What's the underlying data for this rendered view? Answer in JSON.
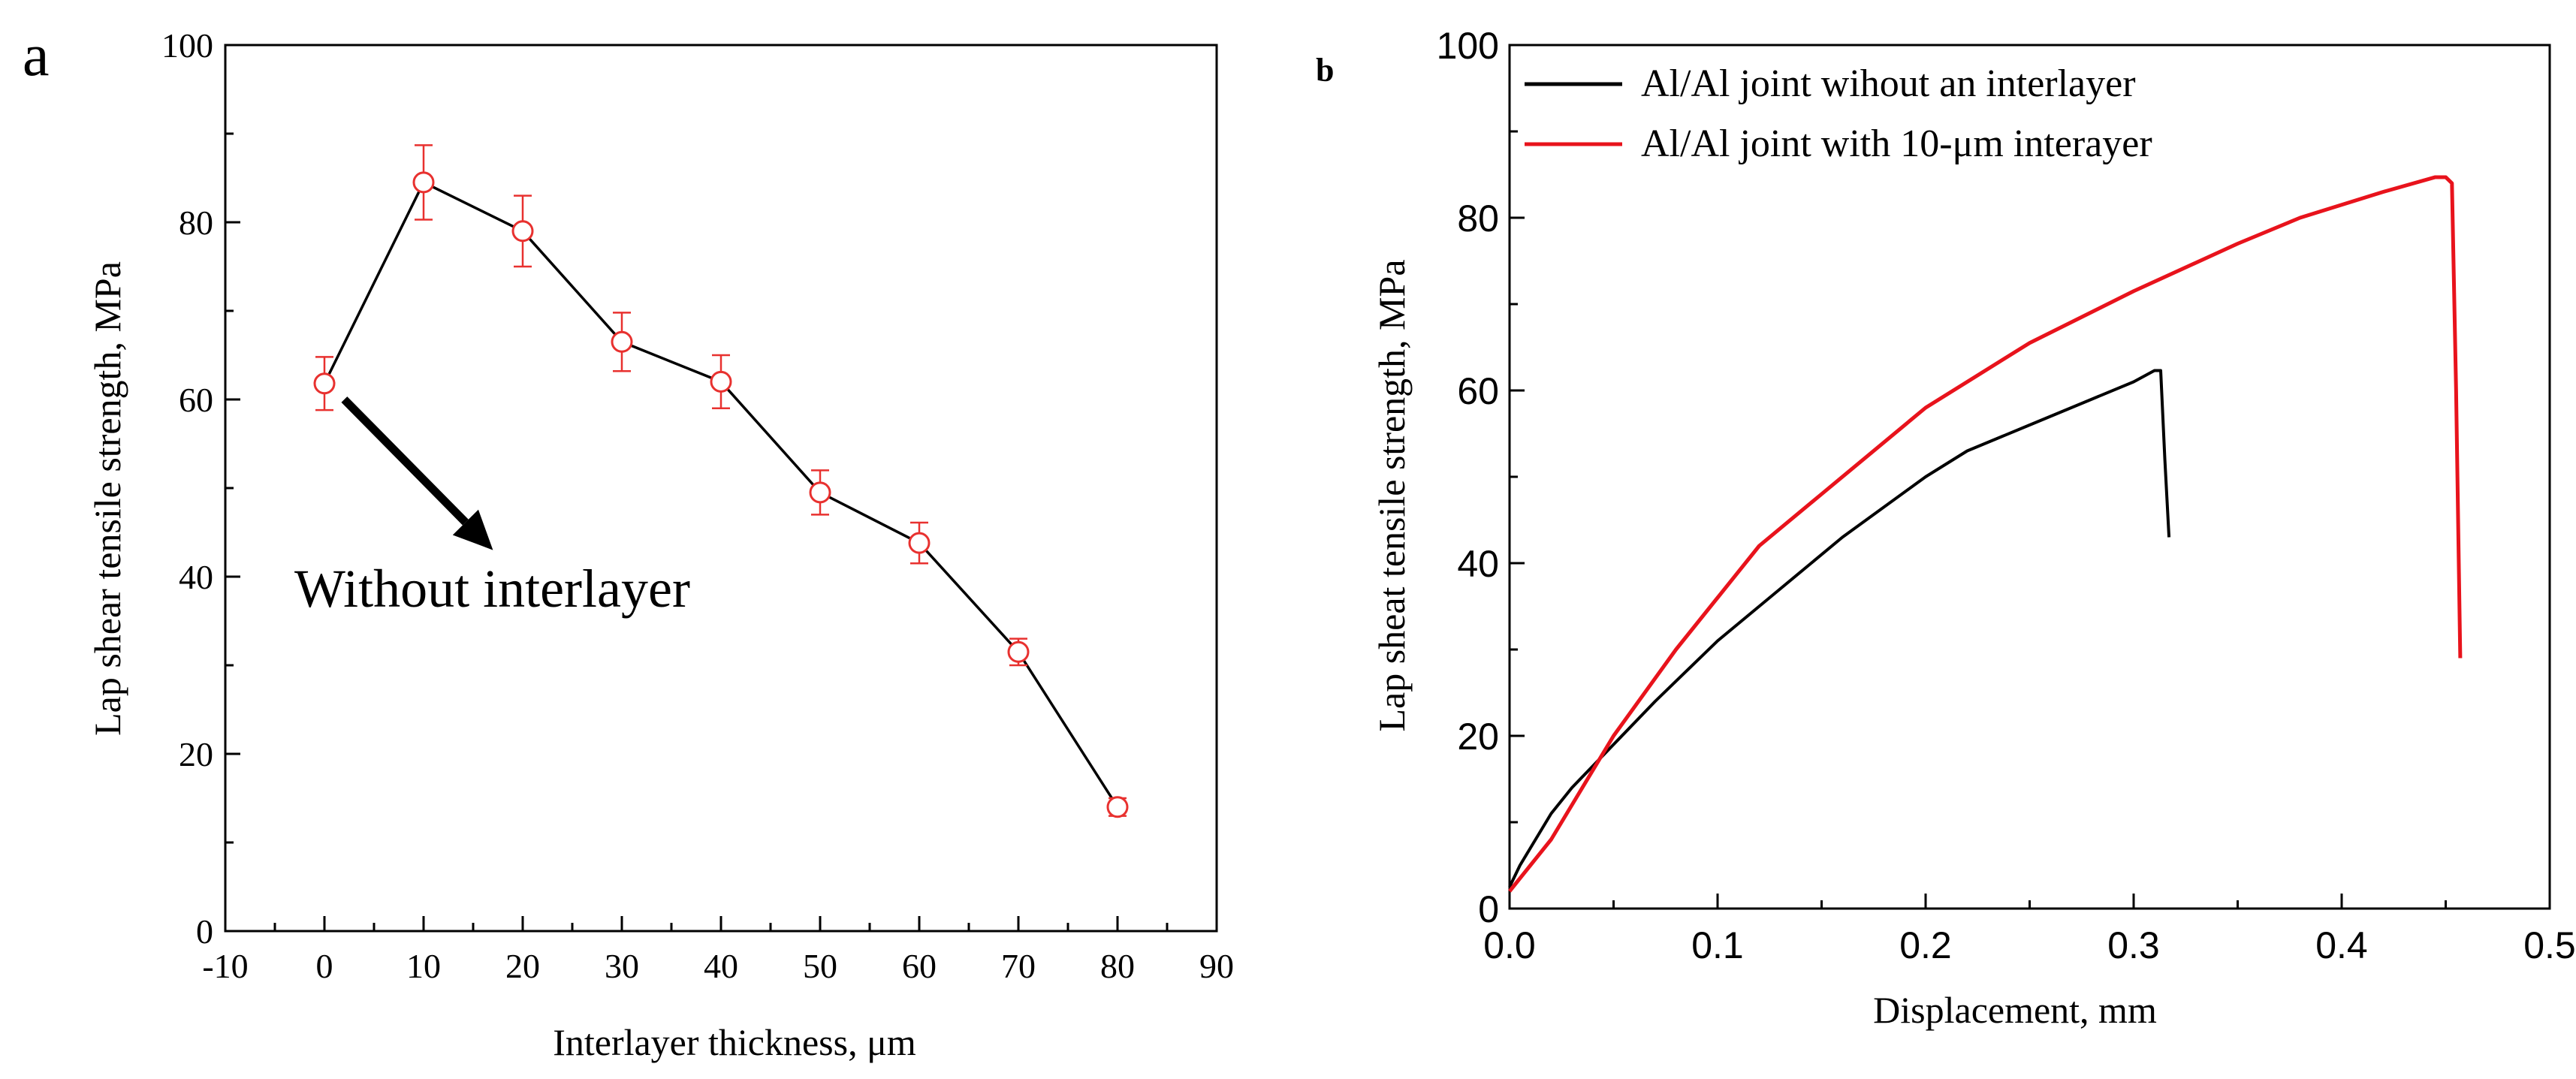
{
  "chart_data": [
    {
      "panel": "a",
      "type": "line",
      "panel_label": "a",
      "title": "",
      "xlabel": "Interlayer thickness, μm",
      "ylabel": "Lap shear tensile strength, MPa",
      "xlim": [
        -10,
        90
      ],
      "ylim": [
        0,
        100
      ],
      "x_ticks": [
        -10,
        0,
        10,
        20,
        30,
        40,
        50,
        60,
        70,
        80,
        90
      ],
      "y_ticks": [
        0,
        20,
        40,
        60,
        80,
        100
      ],
      "series": [
        {
          "name": "Lap shear tensile strength",
          "color": "#000000",
          "marker_color": "#e8312f",
          "marker": "open-circle",
          "x": [
            0,
            10,
            20,
            30,
            40,
            50,
            60,
            70,
            80
          ],
          "y": [
            61.8,
            84.5,
            79.0,
            66.5,
            62.0,
            49.5,
            43.8,
            31.5,
            14.0
          ],
          "error": [
            3.0,
            4.2,
            4.0,
            3.3,
            3.0,
            2.5,
            2.3,
            1.5,
            1.0
          ]
        }
      ],
      "annotation": {
        "text": "Without interlayer",
        "arrow_from": [
          2,
          60
        ],
        "arrow_to": [
          17,
          43
        ]
      }
    },
    {
      "panel": "b",
      "type": "line",
      "panel_label": "b",
      "title": "",
      "xlabel": "Displacement, mm",
      "ylabel": "Lap sheat tensile strength, MPa",
      "xlim": [
        0,
        0.5
      ],
      "ylim": [
        0,
        100
      ],
      "x_ticks": [
        "0.0",
        "0.1",
        "0.2",
        "0.3",
        "0.4",
        "0.5"
      ],
      "y_ticks": [
        0,
        20,
        40,
        60,
        80,
        100
      ],
      "legend_position": "top-left",
      "series": [
        {
          "name": "Al/Al joint wihout an interlayer",
          "color": "#000000",
          "x": [
            0,
            0.005,
            0.01,
            0.02,
            0.03,
            0.05,
            0.07,
            0.1,
            0.13,
            0.16,
            0.2,
            0.22,
            0.25,
            0.28,
            0.3,
            0.31,
            0.313,
            0.315,
            0.317
          ],
          "y": [
            2.5,
            5,
            7,
            11,
            14,
            19,
            24,
            31,
            37,
            43,
            50,
            53,
            56,
            59,
            61,
            62.3,
            62.3,
            52,
            43
          ]
        },
        {
          "name": "Al/Al joint with 10-μm interayer",
          "color": "#e8131c",
          "x": [
            0,
            0.01,
            0.02,
            0.03,
            0.05,
            0.08,
            0.1,
            0.12,
            0.15,
            0.2,
            0.25,
            0.3,
            0.35,
            0.38,
            0.42,
            0.445,
            0.45,
            0.453,
            0.455,
            0.457
          ],
          "y": [
            2,
            5,
            8,
            12,
            20,
            30,
            36,
            42,
            48,
            58,
            65.5,
            71.5,
            77,
            80,
            83,
            84.7,
            84.7,
            84,
            60,
            29
          ]
        }
      ]
    }
  ]
}
